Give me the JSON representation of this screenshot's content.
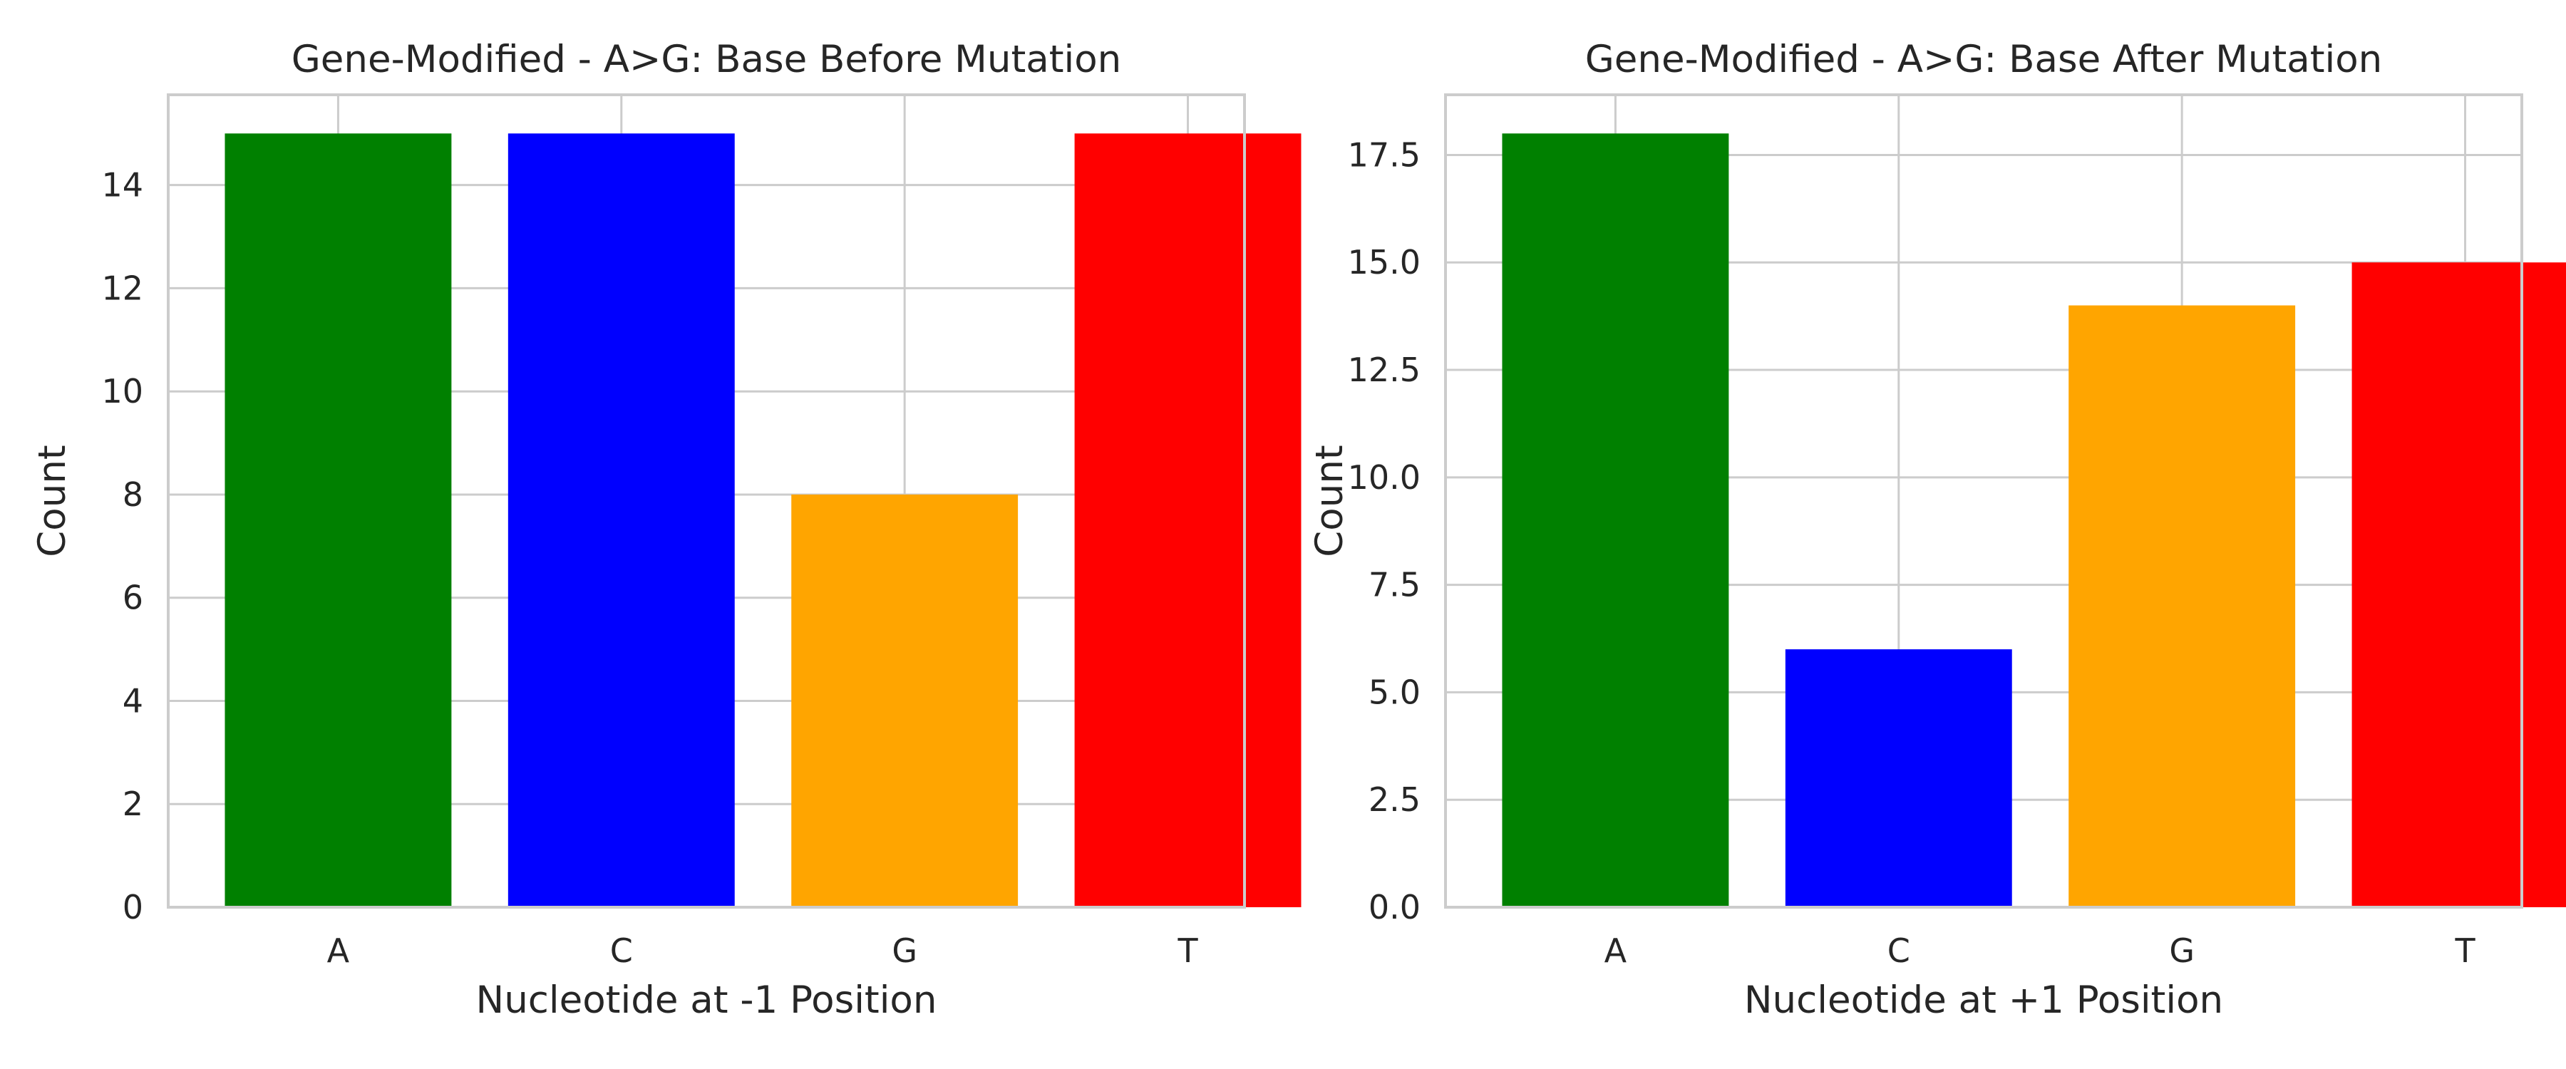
{
  "chart_data": [
    {
      "type": "bar",
      "title": "Gene-Modified - A>G: Base Before Mutation",
      "xlabel": "Nucleotide at -1 Position",
      "ylabel": "Count",
      "categories": [
        "A",
        "C",
        "G",
        "T"
      ],
      "values": [
        15,
        15,
        8,
        15
      ],
      "colors": [
        "#008000",
        "#0000ff",
        "#ffa500",
        "#ff0000"
      ],
      "ylim": [
        0,
        15.75
      ],
      "yticks": [
        0,
        2,
        4,
        6,
        8,
        10,
        12,
        14
      ],
      "ytick_labels": [
        "0",
        "2",
        "4",
        "6",
        "8",
        "10",
        "12",
        "14"
      ],
      "grid": true
    },
    {
      "type": "bar",
      "title": "Gene-Modified - A>G: Base After Mutation",
      "xlabel": "Nucleotide at +1 Position",
      "ylabel": "Count",
      "categories": [
        "A",
        "C",
        "G",
        "T"
      ],
      "values": [
        18,
        6,
        14,
        15
      ],
      "colors": [
        "#008000",
        "#0000ff",
        "#ffa500",
        "#ff0000"
      ],
      "ylim": [
        0,
        18.9
      ],
      "yticks": [
        0,
        2.5,
        5,
        7.5,
        10,
        12.5,
        15,
        17.5
      ],
      "ytick_labels": [
        "0.0",
        "2.5",
        "5.0",
        "7.5",
        "10.0",
        "12.5",
        "15.0",
        "17.5"
      ],
      "grid": true
    }
  ]
}
